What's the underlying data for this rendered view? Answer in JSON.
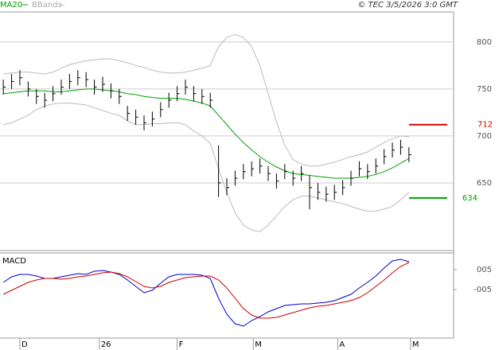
{
  "chart_data": [
    {
      "type": "ohlc",
      "title": "© TEC 3/5/2026 3:0 GMT",
      "high": [
        760,
        766,
        770,
        758,
        750,
        746,
        753,
        760,
        766,
        770,
        768,
        760,
        763,
        756,
        750,
        732,
        728,
        722,
        726,
        736,
        746,
        753,
        760,
        753,
        750,
        746,
        690,
        655,
        663,
        670,
        673,
        676,
        668,
        660,
        670,
        663,
        668,
        658,
        650,
        646,
        648,
        653,
        663,
        673,
        670,
        676,
        686,
        693,
        696,
        688
      ],
      "low": [
        744,
        750,
        754,
        742,
        734,
        730,
        737,
        744,
        750,
        754,
        752,
        744,
        747,
        740,
        734,
        716,
        712,
        706,
        710,
        720,
        730,
        737,
        744,
        737,
        734,
        730,
        635,
        637,
        647,
        654,
        657,
        660,
        652,
        644,
        654,
        647,
        652,
        622,
        632,
        630,
        632,
        637,
        647,
        657,
        654,
        660,
        670,
        677,
        680,
        672
      ],
      "close": [
        752,
        758,
        762,
        750,
        742,
        738,
        745,
        752,
        758,
        762,
        760,
        752,
        755,
        748,
        742,
        724,
        720,
        714,
        718,
        728,
        738,
        745,
        752,
        745,
        742,
        738,
        650,
        645,
        655,
        662,
        665,
        668,
        660,
        652,
        662,
        655,
        660,
        645,
        640,
        638,
        640,
        645,
        655,
        665,
        662,
        668,
        678,
        685,
        688,
        680
      ],
      "bar_color": "#000",
      "series": [
        {
          "name": "MA20",
          "color": "#00a000",
          "values": [
            745,
            746,
            747,
            748,
            748,
            748,
            747,
            747,
            748,
            749,
            750,
            750,
            749,
            748,
            747,
            745,
            744,
            742,
            741,
            740,
            740,
            740,
            739,
            737,
            735,
            732,
            722,
            712,
            702,
            693,
            685,
            678,
            672,
            667,
            663,
            660,
            659,
            658,
            657,
            656,
            655,
            655,
            655,
            656,
            657,
            659,
            662,
            666,
            671,
            676
          ]
        },
        {
          "name": "BBands",
          "color": "#bbbbbb",
          "upper": [
            766,
            767,
            768,
            768,
            767,
            766,
            768,
            772,
            776,
            778,
            780,
            781,
            782,
            782,
            780,
            778,
            775,
            773,
            770,
            768,
            767,
            767,
            768,
            770,
            772,
            775,
            795,
            805,
            808,
            805,
            795,
            775,
            745,
            715,
            690,
            675,
            670,
            668,
            668,
            670,
            672,
            675,
            678,
            680,
            683,
            688,
            693,
            697,
            700,
            699
          ],
          "lower": [
            712,
            714,
            718,
            722,
            728,
            732,
            734,
            735,
            735,
            734,
            733,
            730,
            727,
            724,
            722,
            716,
            712,
            712,
            713,
            713,
            714,
            714,
            712,
            705,
            700,
            692,
            665,
            640,
            618,
            605,
            600,
            598,
            605,
            615,
            625,
            632,
            636,
            636,
            634,
            632,
            630,
            628,
            625,
            622,
            620,
            620,
            622,
            625,
            632,
            640
          ]
        }
      ],
      "levels": [
        {
          "value": 712,
          "color": "#cc0000"
        },
        {
          "value": 634,
          "color": "#00a000"
        }
      ],
      "ylim": [
        578,
        832
      ],
      "yticks": [
        650,
        700,
        750,
        800
      ],
      "grid": true,
      "xlim": [
        -0.4,
        54.4
      ],
      "xticks": [
        {
          "value": 2,
          "label": "D"
        },
        {
          "value": 11.6,
          "label": "26"
        },
        {
          "value": 21,
          "label": "F"
        },
        {
          "value": 30.2,
          "label": "M"
        },
        {
          "value": 40.4,
          "label": "A"
        },
        {
          "value": 49.2,
          "label": "M"
        }
      ]
    },
    {
      "type": "line",
      "title": "MACD",
      "series": [
        {
          "color": "#0000cc",
          "values": [
            -1.4,
            1.4,
            2.6,
            2.6,
            1.8,
            0.6,
            0.6,
            1.4,
            2.2,
            3,
            2.6,
            4.2,
            4.6,
            3.8,
            2.6,
            -0.2,
            -3.4,
            -6.6,
            -5.4,
            -1.8,
            1.4,
            2.6,
            2.6,
            2.6,
            2.2,
            0.6,
            -9.4,
            -17.4,
            -22.2,
            -23.4,
            -20.6,
            -18.6,
            -16.2,
            -14.6,
            -13,
            -12.6,
            -12.2,
            -12.2,
            -11.8,
            -11.4,
            -10.6,
            -9,
            -7.4,
            -4.2,
            -1.4,
            1.8,
            5.8,
            9.4,
            10.2,
            9
          ]
        },
        {
          "color": "#cc0000",
          "values": [
            -7.4,
            -5.4,
            -3.4,
            -1.4,
            -0.2,
            0.6,
            0.6,
            0.2,
            0.6,
            1.4,
            1.8,
            2.6,
            3.4,
            3.8,
            3,
            1.4,
            -1,
            -3.4,
            -4.2,
            -3.4,
            -1.4,
            -0.2,
            1,
            1.4,
            1.8,
            1.8,
            -0.2,
            -4.2,
            -9.4,
            -14.6,
            -17.8,
            -19.4,
            -19.4,
            -19,
            -17.8,
            -16.6,
            -15.4,
            -14.2,
            -13.4,
            -13,
            -12.2,
            -11.4,
            -10.6,
            -9,
            -6.6,
            -3.4,
            -0.2,
            3.4,
            6.6,
            8.6
          ]
        }
      ],
      "ylim": [
        -29.4,
        13.4
      ],
      "yticks": [
        {
          "value": 5,
          "label": "005"
        },
        {
          "value": -5,
          "label": "-005"
        }
      ]
    }
  ]
}
